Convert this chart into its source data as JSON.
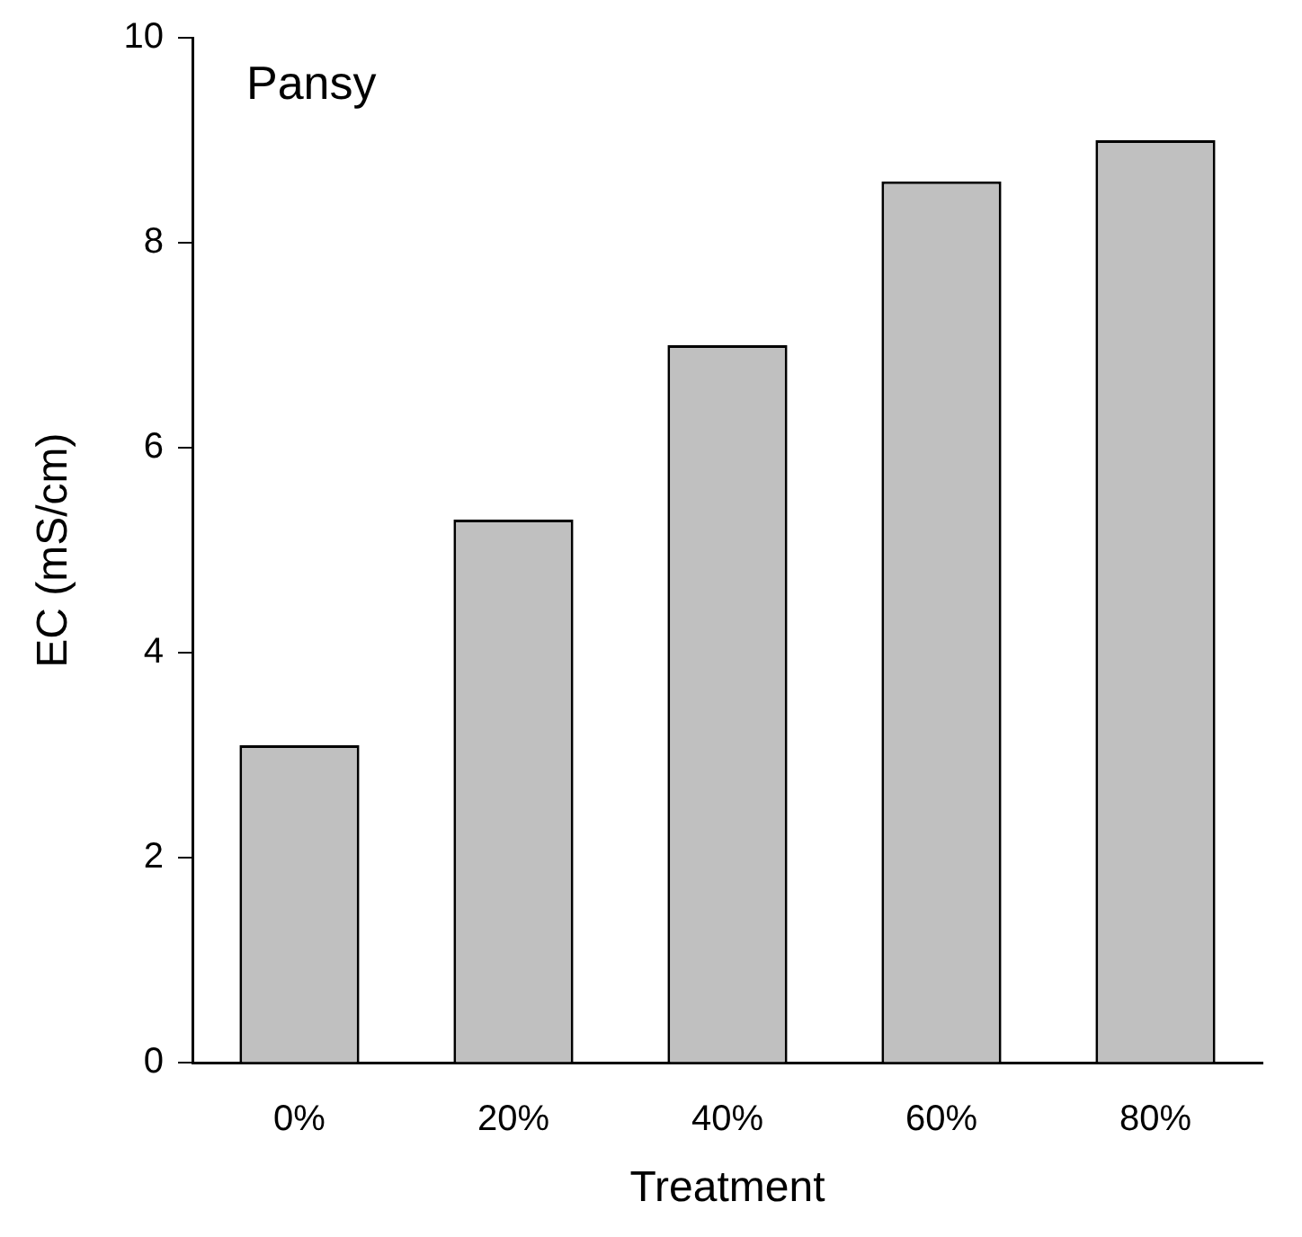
{
  "chart_data": {
    "type": "bar",
    "categories": [
      "0%",
      "20%",
      "40%",
      "60%",
      "80%"
    ],
    "values": [
      3.1,
      5.3,
      7.0,
      8.6,
      9.0
    ],
    "color": "#c0c0c0",
    "xlabel": "Treatment",
    "ylabel": "EC (mS/cm)",
    "annotations": [
      "Pansy"
    ],
    "ylim": [
      0,
      10
    ],
    "yticks": [
      0,
      2,
      4,
      6,
      8,
      10
    ],
    "legend": false
  }
}
